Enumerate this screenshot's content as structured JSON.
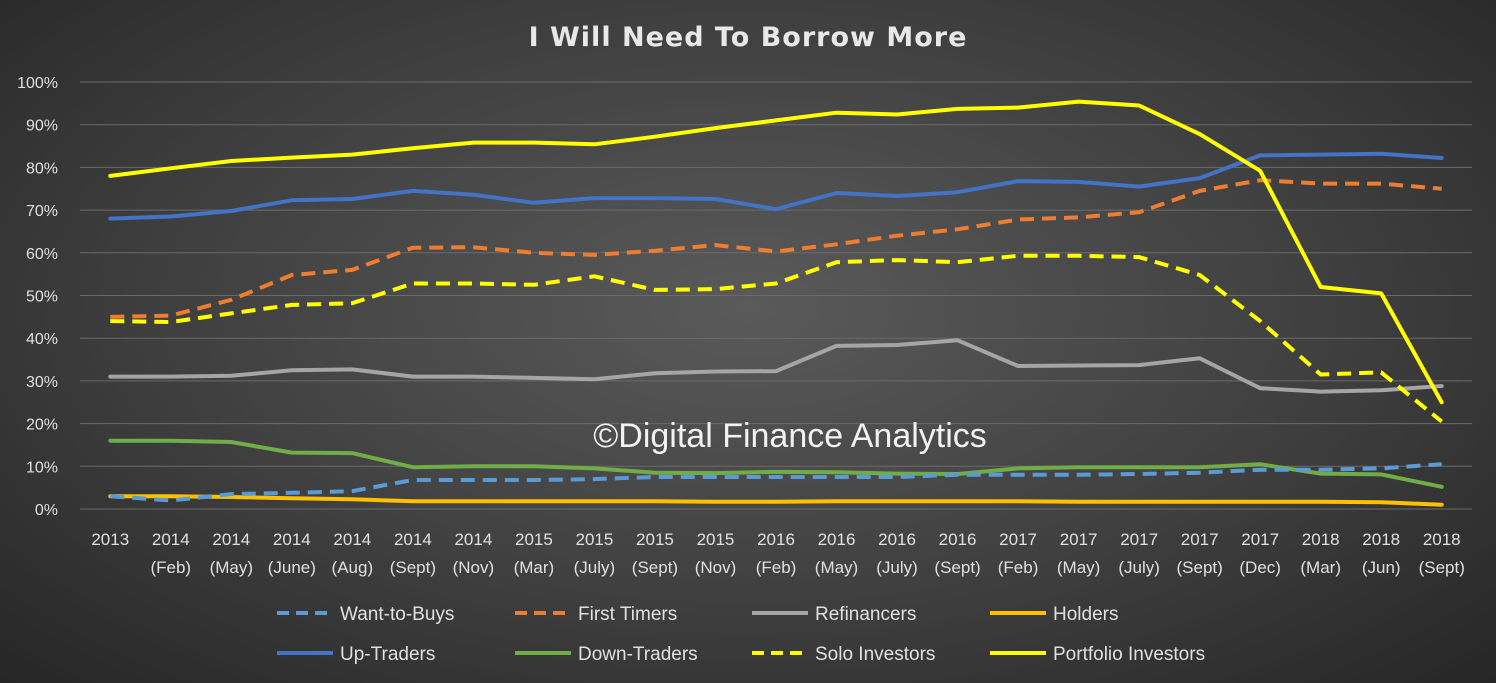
{
  "chart_data": {
    "type": "line",
    "title": "I Will Need To Borrow More",
    "watermark": "©Digital Finance Analytics",
    "ylim": [
      0,
      100
    ],
    "yticks": [
      "0%",
      "10%",
      "20%",
      "30%",
      "40%",
      "50%",
      "60%",
      "70%",
      "80%",
      "90%",
      "100%"
    ],
    "grid": true,
    "legend_position": "bottom",
    "categories": [
      {
        "year": "2013",
        "sub": ""
      },
      {
        "year": "2014",
        "sub": "(Feb)"
      },
      {
        "year": "2014",
        "sub": "(May)"
      },
      {
        "year": "2014",
        "sub": "(June)"
      },
      {
        "year": "2014",
        "sub": "(Aug)"
      },
      {
        "year": "2014",
        "sub": "(Sept)"
      },
      {
        "year": "2014",
        "sub": "(Nov)"
      },
      {
        "year": "2015",
        "sub": "(Mar)"
      },
      {
        "year": "2015",
        "sub": "(July)"
      },
      {
        "year": "2015",
        "sub": "(Sept)"
      },
      {
        "year": "2015",
        "sub": "(Nov)"
      },
      {
        "year": "2016",
        "sub": "(Feb)"
      },
      {
        "year": "2016",
        "sub": "(May)"
      },
      {
        "year": "2016",
        "sub": "(July)"
      },
      {
        "year": "2016",
        "sub": "(Sept)"
      },
      {
        "year": "2017",
        "sub": "(Feb)"
      },
      {
        "year": "2017",
        "sub": "(May)"
      },
      {
        "year": "2017",
        "sub": "(July)"
      },
      {
        "year": "2017",
        "sub": "(Sept)"
      },
      {
        "year": "2017",
        "sub": "(Dec)"
      },
      {
        "year": "2018",
        "sub": "(Mar)"
      },
      {
        "year": "2018",
        "sub": "(Jun)"
      },
      {
        "year": "2018",
        "sub": "(Sept)"
      }
    ],
    "series": [
      {
        "name": "Want-to-Buys",
        "color": "#5b9bd5",
        "dashed": true,
        "values": [
          3,
          2,
          3.5,
          3.8,
          4.2,
          6.8,
          6.8,
          6.8,
          7,
          7.5,
          7.5,
          7.5,
          7.5,
          7.5,
          8,
          8,
          8,
          8.2,
          8.5,
          9.2,
          9.2,
          9.5,
          10.5
        ]
      },
      {
        "name": "First Timers",
        "color": "#ed7d31",
        "dashed": true,
        "values": [
          45,
          45.3,
          49,
          54.8,
          56,
          61.2,
          61.3,
          60,
          59.5,
          60.5,
          61.8,
          60.3,
          62,
          64,
          65.5,
          67.8,
          68.3,
          69.5,
          74.5,
          77,
          76.2,
          76.2,
          75
        ]
      },
      {
        "name": "Refinancers",
        "color": "#a5a5a5",
        "dashed": false,
        "values": [
          31,
          31,
          31.2,
          32.5,
          32.7,
          31,
          31,
          30.7,
          30.4,
          31.8,
          32.2,
          32.3,
          38.2,
          38.4,
          39.5,
          33.5,
          33.6,
          33.7,
          35.3,
          28.3,
          27.5,
          27.8,
          28.8
        ]
      },
      {
        "name": "Holders",
        "color": "#ffc000",
        "dashed": false,
        "values": [
          3,
          3,
          2.8,
          2.5,
          2.3,
          1.8,
          1.8,
          1.8,
          1.8,
          1.8,
          1.7,
          1.7,
          1.8,
          1.8,
          1.8,
          1.8,
          1.7,
          1.7,
          1.7,
          1.7,
          1.7,
          1.6,
          1
        ]
      },
      {
        "name": "Up-Traders",
        "color": "#4472c4",
        "dashed": false,
        "values": [
          68,
          68.5,
          69.8,
          72.3,
          72.6,
          74.5,
          73.6,
          71.7,
          72.8,
          72.8,
          72.6,
          70.2,
          74,
          73.3,
          74.2,
          76.8,
          76.6,
          75.5,
          77.5,
          82.8,
          83,
          83.2,
          82.2
        ]
      },
      {
        "name": "Down-Traders",
        "color": "#70ad47",
        "dashed": false,
        "values": [
          16,
          16,
          15.7,
          13.2,
          13.1,
          9.8,
          10,
          10,
          9.5,
          8.5,
          8.4,
          8.7,
          8.6,
          8.3,
          8.2,
          9.5,
          9.8,
          9.8,
          9.8,
          10.5,
          8.3,
          8.1,
          5.2
        ]
      },
      {
        "name": "Solo Investors",
        "color": "#ffff00",
        "dashed": true,
        "values": [
          44,
          43.8,
          45.8,
          47.8,
          48.2,
          52.8,
          52.8,
          52.5,
          54.5,
          51.3,
          51.5,
          52.8,
          57.8,
          58.3,
          57.8,
          59.3,
          59.3,
          59,
          54.8,
          44,
          31.5,
          32,
          20.5
        ]
      },
      {
        "name": "Portfolio Investors",
        "color": "#ffff00",
        "dashed": false,
        "values": [
          78,
          79.8,
          81.5,
          82.3,
          83,
          84.5,
          85.8,
          85.8,
          85.4,
          87.2,
          89.2,
          91,
          92.8,
          92.4,
          93.7,
          94,
          95.4,
          94.5,
          87.8,
          79.2,
          52,
          50.5,
          25
        ]
      }
    ]
  }
}
